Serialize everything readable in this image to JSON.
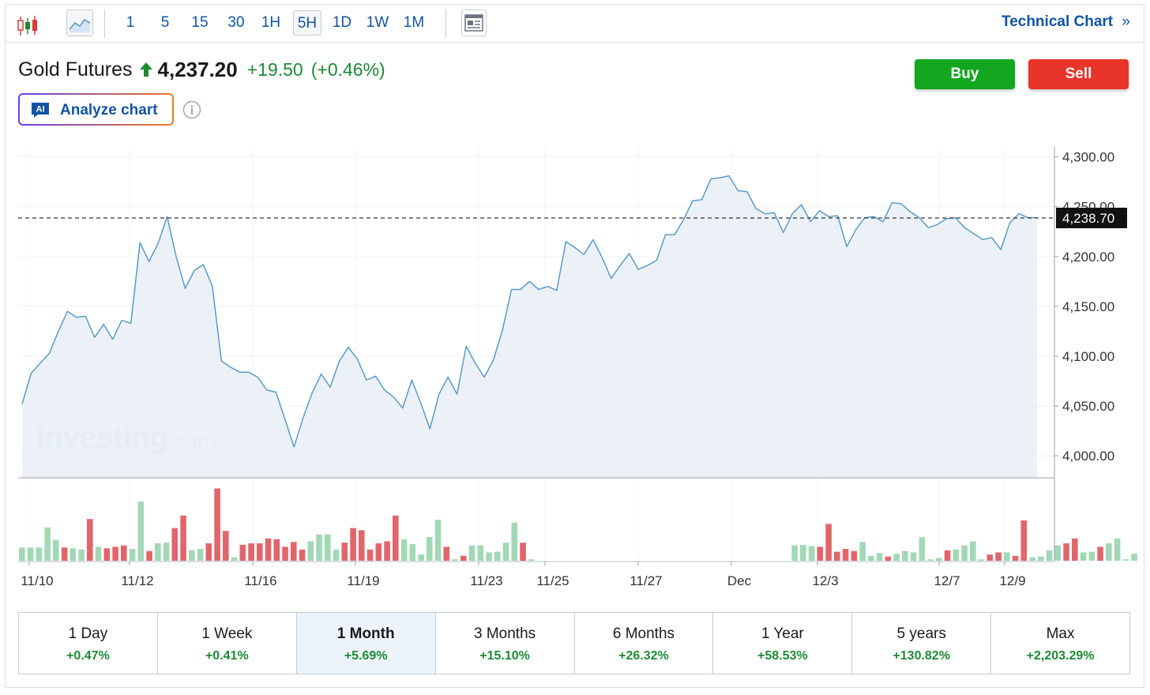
{
  "toolbar": {
    "chart_type_icons": [
      "candlestick-icon",
      "line-chart-icon"
    ],
    "intervals": [
      "1",
      "5",
      "15",
      "30",
      "1H",
      "5H",
      "1D",
      "1W",
      "1M"
    ],
    "active_interval": "5H",
    "news_icon": "news-panel-icon",
    "technical_chart_label": "Technical Chart",
    "technical_chart_chevron": "»"
  },
  "instrument": {
    "name": "Gold Futures",
    "direction_icon": "up-arrow-icon",
    "price": "4,237.20",
    "change": "+19.50",
    "change_pct": "(+0.46%)"
  },
  "actions": {
    "buy_label": "Buy",
    "sell_label": "Sell"
  },
  "analyze": {
    "badge": "AI",
    "label": "Analyze chart",
    "info_icon": "info-icon"
  },
  "colors": {
    "accent": "#1254a3",
    "line": "#5b9bc8",
    "area": "#e8eef6",
    "up": "#1d8a34",
    "buy": "#13a61f",
    "sell": "#e9342a",
    "vol_up": "#a2d8b6",
    "vol_down": "#e0666c"
  },
  "chart_data": {
    "type": "area",
    "yticks": [
      "4,300.00",
      "4,250.00",
      "4,200.00",
      "4,150.00",
      "4,100.00",
      "4,050.00",
      "4,000.00"
    ],
    "ylim": [
      3978,
      4310
    ],
    "last_price_label": "4,238.70",
    "last_price": 4238.7,
    "xticks": [
      "11/10",
      "11/12",
      "11/16",
      "11/19",
      "11/23",
      "11/25",
      "11/27",
      "Dec",
      "12/3",
      "12/7",
      "12/9"
    ],
    "watermark": "Investing",
    "watermark_suffix": ".com",
    "price_values": [
      4052,
      4083,
      4093,
      4103,
      4125,
      4145,
      4139,
      4140,
      4119,
      4132,
      4117,
      4136,
      4133,
      4214,
      4195,
      4213,
      4240,
      4200,
      4168,
      4186,
      4192,
      4170,
      4095,
      4089,
      4084,
      4084,
      4079,
      4066,
      4064,
      4037,
      4009,
      4038,
      4063,
      4082,
      4069,
      4095,
      4109,
      4097,
      4076,
      4080,
      4066,
      4059,
      4048,
      4076,
      4053,
      4027,
      4062,
      4079,
      4062,
      4110,
      4093,
      4079,
      4096,
      4126,
      4167,
      4167,
      4175,
      4167,
      4170,
      4166,
      4215,
      4209,
      4202,
      4217,
      4199,
      4178,
      4191,
      4203,
      4187,
      4191,
      4196,
      4222,
      4222,
      4237,
      4256,
      4257,
      4278,
      4279,
      4281,
      4266,
      4265,
      4248,
      4243,
      4244,
      4224,
      4243,
      4252,
      4235,
      4246,
      4240,
      4241,
      4210,
      4227,
      4239,
      4240,
      4235,
      4254,
      4253,
      4245,
      4239,
      4229,
      4232,
      4238,
      4239,
      4229,
      4223,
      4217,
      4219,
      4207,
      4234,
      4243,
      4239,
      4239
    ],
    "volume": [
      {
        "v": 0.19,
        "d": "up"
      },
      {
        "v": 0.19,
        "d": "up"
      },
      {
        "v": 0.19,
        "d": "up"
      },
      {
        "v": 0.48,
        "d": "up"
      },
      {
        "v": 0.3,
        "d": "up"
      },
      {
        "v": 0.19,
        "d": "down"
      },
      {
        "v": 0.18,
        "d": "up"
      },
      {
        "v": 0.16,
        "d": "up"
      },
      {
        "v": 0.6,
        "d": "down"
      },
      {
        "v": 0.2,
        "d": "up"
      },
      {
        "v": 0.18,
        "d": "down"
      },
      {
        "v": 0.2,
        "d": "down"
      },
      {
        "v": 0.22,
        "d": "down"
      },
      {
        "v": 0.17,
        "d": "up"
      },
      {
        "v": 0.85,
        "d": "up"
      },
      {
        "v": 0.14,
        "d": "down"
      },
      {
        "v": 0.25,
        "d": "up"
      },
      {
        "v": 0.26,
        "d": "up"
      },
      {
        "v": 0.47,
        "d": "down"
      },
      {
        "v": 0.65,
        "d": "down"
      },
      {
        "v": 0.15,
        "d": "up"
      },
      {
        "v": 0.17,
        "d": "up"
      },
      {
        "v": 0.25,
        "d": "down"
      },
      {
        "v": 1.04,
        "d": "down"
      },
      {
        "v": 0.43,
        "d": "down"
      },
      {
        "v": 0.05,
        "d": "up"
      },
      {
        "v": 0.23,
        "d": "down"
      },
      {
        "v": 0.25,
        "d": "down"
      },
      {
        "v": 0.25,
        "d": "down"
      },
      {
        "v": 0.32,
        "d": "down"
      },
      {
        "v": 0.31,
        "d": "down"
      },
      {
        "v": 0.2,
        "d": "down"
      },
      {
        "v": 0.27,
        "d": "down"
      },
      {
        "v": 0.16,
        "d": "down"
      },
      {
        "v": 0.28,
        "d": "up"
      },
      {
        "v": 0.38,
        "d": "up"
      },
      {
        "v": 0.38,
        "d": "up"
      },
      {
        "v": 0.16,
        "d": "up"
      },
      {
        "v": 0.26,
        "d": "down"
      },
      {
        "v": 0.47,
        "d": "down"
      },
      {
        "v": 0.44,
        "d": "down"
      },
      {
        "v": 0.16,
        "d": "down"
      },
      {
        "v": 0.25,
        "d": "down"
      },
      {
        "v": 0.28,
        "d": "down"
      },
      {
        "v": 0.65,
        "d": "down"
      },
      {
        "v": 0.31,
        "d": "up"
      },
      {
        "v": 0.24,
        "d": "up"
      },
      {
        "v": 0.09,
        "d": "up"
      },
      {
        "v": 0.34,
        "d": "up"
      },
      {
        "v": 0.59,
        "d": "up"
      },
      {
        "v": 0.2,
        "d": "down"
      },
      {
        "v": 0.02,
        "d": "up"
      },
      {
        "v": 0.07,
        "d": "down"
      },
      {
        "v": 0.22,
        "d": "up"
      },
      {
        "v": 0.22,
        "d": "up"
      },
      {
        "v": 0.12,
        "d": "up"
      },
      {
        "v": 0.13,
        "d": "up"
      },
      {
        "v": 0.26,
        "d": "up"
      },
      {
        "v": 0.55,
        "d": "up"
      },
      {
        "v": 0.26,
        "d": "down"
      },
      {
        "v": 0.02,
        "d": "up"
      },
      {
        "v": 0.0,
        "d": "up"
      },
      {
        "v": 0.0,
        "d": "up"
      },
      {
        "v": 0.0,
        "d": "up"
      },
      {
        "v": 0.0,
        "d": "up"
      },
      {
        "v": 0.0,
        "d": "up"
      },
      {
        "v": 0.0,
        "d": "up"
      },
      {
        "v": 0.0,
        "d": "up"
      },
      {
        "v": 0.0,
        "d": "up"
      },
      {
        "v": 0.0,
        "d": "up"
      },
      {
        "v": 0.0,
        "d": "up"
      },
      {
        "v": 0.0,
        "d": "up"
      },
      {
        "v": 0.0,
        "d": "up"
      },
      {
        "v": 0.0,
        "d": "up"
      },
      {
        "v": 0.0,
        "d": "up"
      },
      {
        "v": 0.0,
        "d": "up"
      },
      {
        "v": 0.0,
        "d": "up"
      },
      {
        "v": 0.0,
        "d": "up"
      },
      {
        "v": 0.0,
        "d": "up"
      },
      {
        "v": 0.0,
        "d": "up"
      },
      {
        "v": 0.0,
        "d": "up"
      },
      {
        "v": 0.0,
        "d": "up"
      },
      {
        "v": 0.0,
        "d": "up"
      },
      {
        "v": 0.0,
        "d": "up"
      },
      {
        "v": 0.0,
        "d": "up"
      },
      {
        "v": 0.0,
        "d": "up"
      },
      {
        "v": 0.0,
        "d": "up"
      },
      {
        "v": 0.0,
        "d": "up"
      },
      {
        "v": 0.0,
        "d": "up"
      },
      {
        "v": 0.0,
        "d": "up"
      },
      {
        "v": 0.0,
        "d": "up"
      },
      {
        "v": 0.22,
        "d": "up"
      },
      {
        "v": 0.23,
        "d": "up"
      },
      {
        "v": 0.21,
        "d": "up"
      },
      {
        "v": 0.2,
        "d": "down"
      },
      {
        "v": 0.53,
        "d": "down"
      },
      {
        "v": 0.13,
        "d": "down"
      },
      {
        "v": 0.17,
        "d": "down"
      },
      {
        "v": 0.14,
        "d": "down"
      },
      {
        "v": 0.27,
        "d": "up"
      },
      {
        "v": 0.07,
        "d": "up"
      },
      {
        "v": 0.11,
        "d": "up"
      },
      {
        "v": 0.06,
        "d": "down"
      },
      {
        "v": 0.1,
        "d": "up"
      },
      {
        "v": 0.14,
        "d": "up"
      },
      {
        "v": 0.12,
        "d": "up"
      },
      {
        "v": 0.34,
        "d": "up"
      },
      {
        "v": 0.02,
        "d": "up"
      },
      {
        "v": 0.04,
        "d": "up"
      },
      {
        "v": 0.15,
        "d": "down"
      },
      {
        "v": 0.16,
        "d": "up"
      },
      {
        "v": 0.22,
        "d": "up"
      },
      {
        "v": 0.28,
        "d": "up"
      },
      {
        "v": 0.02,
        "d": "up"
      },
      {
        "v": 0.09,
        "d": "down"
      },
      {
        "v": 0.12,
        "d": "down"
      },
      {
        "v": 0.12,
        "d": "up"
      },
      {
        "v": 0.07,
        "d": "down"
      },
      {
        "v": 0.58,
        "d": "down"
      },
      {
        "v": 0.05,
        "d": "up"
      },
      {
        "v": 0.06,
        "d": "up"
      },
      {
        "v": 0.15,
        "d": "up"
      },
      {
        "v": 0.22,
        "d": "up"
      },
      {
        "v": 0.25,
        "d": "down"
      },
      {
        "v": 0.32,
        "d": "down"
      },
      {
        "v": 0.12,
        "d": "up"
      },
      {
        "v": 0.13,
        "d": "up"
      },
      {
        "v": 0.2,
        "d": "down"
      },
      {
        "v": 0.25,
        "d": "up"
      },
      {
        "v": 0.32,
        "d": "up"
      },
      {
        "v": 0.02,
        "d": "up"
      },
      {
        "v": 0.1,
        "d": "up"
      }
    ]
  },
  "periods": [
    {
      "label": "1 Day",
      "value": "+0.47%"
    },
    {
      "label": "1 Week",
      "value": "+0.41%"
    },
    {
      "label": "1 Month",
      "value": "+5.69%"
    },
    {
      "label": "3 Months",
      "value": "+15.10%"
    },
    {
      "label": "6 Months",
      "value": "+26.32%"
    },
    {
      "label": "1 Year",
      "value": "+58.53%"
    },
    {
      "label": "5 years",
      "value": "+130.82%"
    },
    {
      "label": "Max",
      "value": "+2,203.29%"
    }
  ],
  "active_period": "1 Month"
}
